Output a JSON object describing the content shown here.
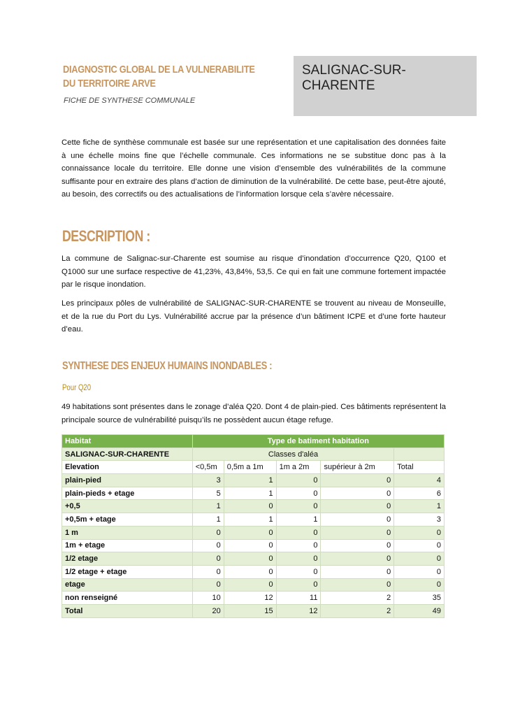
{
  "header": {
    "title_line1": "DIAGNOSTIC GLOBAL DE LA VULNERABILITE",
    "title_line2": "DU TERRITOIRE ARVE",
    "subtitle": "FICHE DE SYNTHESE COMMUNALE",
    "commune": "SALIGNAC-SUR-CHARENTE"
  },
  "intro": "Cette fiche de synthèse communale est basée sur une représentation et une capitalisation des données faite à une échelle moins fine que l’échelle communale. Ces informations ne se substitue donc pas à la connaissance locale du territoire. Elle donne une vision d’ensemble des vulnérabilités de la commune suffisante pour en extraire des plans d’action de diminution de la vulnérabilité. De cette base, peut-être ajouté, au besoin, des correctifs ou des actualisations de l’information lorsque cela s’avère nécessaire.",
  "description": {
    "heading": "DESCRIPTION :",
    "p1": "La commune de Salignac-sur-Charente est soumise au risque d’inondation d’occurrence Q20, Q100 et Q1000 sur une surface respective de 41,23%, 43,84%, 53,5. Ce qui en fait une commune fortement impactée par le risque inondation.",
    "p2": "Les principaux pôles de vulnérabilité de SALIGNAC-SUR-CHARENTE se trouvent au niveau de Monseuille, et de la rue du Port du Lys. Vulnérabilité accrue par la présence d’un bâtiment ICPE et d’une forte hauteur d’eau."
  },
  "synthese": {
    "heading": "SYNTHESE DES ENJEUX HUMAINS INONDABLES :",
    "subheading": "Pour Q20",
    "p1": "49 habitations sont présentes dans le zonage d’aléa Q20. Dont 4 de plain-pied. Ces bâtiments représentent la principale source de vulnérabilité puisqu’ils ne possèdent aucun étage refuge."
  },
  "table": {
    "h_habitat": "Habitat",
    "h_type": "Type de batiment habitation",
    "commune": "SALIGNAC-SUR-CHARENTE",
    "classes": "Classes d'aléa",
    "elevation": "Elevation",
    "columns": [
      "<0,5m",
      "0,5m a 1m",
      "1m a 2m",
      "supérieur à 2m",
      "Total"
    ],
    "rows": [
      {
        "label": "plain-pied",
        "values": [
          "3",
          "1",
          "0",
          "0",
          "4"
        ]
      },
      {
        "label": "plain-pieds + etage",
        "values": [
          "5",
          "1",
          "0",
          "0",
          "6"
        ]
      },
      {
        "label": "+0,5",
        "values": [
          "1",
          "0",
          "0",
          "0",
          "1"
        ]
      },
      {
        "label": "+0,5m + etage",
        "values": [
          "1",
          "1",
          "1",
          "0",
          "3"
        ]
      },
      {
        "label": "1 m",
        "values": [
          "0",
          "0",
          "0",
          "0",
          "0"
        ]
      },
      {
        "label": "1m + etage",
        "values": [
          "0",
          "0",
          "0",
          "0",
          "0"
        ]
      },
      {
        "label": "1/2 etage",
        "values": [
          "0",
          "0",
          "0",
          "0",
          "0"
        ]
      },
      {
        "label": "1/2 etage + etage",
        "values": [
          "0",
          "0",
          "0",
          "0",
          "0"
        ]
      },
      {
        "label": "etage",
        "values": [
          "0",
          "0",
          "0",
          "0",
          "0"
        ]
      },
      {
        "label": "non renseigné",
        "values": [
          "10",
          "12",
          "11",
          "2",
          "35"
        ]
      },
      {
        "label": "Total",
        "values": [
          "20",
          "15",
          "12",
          "2",
          "49"
        ]
      }
    ]
  },
  "colors": {
    "accent": "#c7955d",
    "table_header": "#78b24a",
    "table_row_alt": "#e4efd6",
    "commune_box": "#d1d1d1"
  }
}
